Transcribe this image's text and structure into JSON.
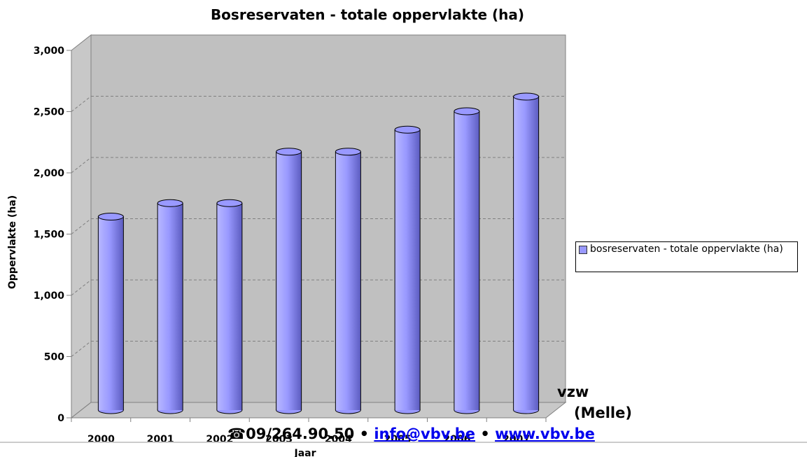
{
  "chart_data": {
    "type": "bar",
    "title": "Bosreservaten - totale oppervlakte (ha)",
    "xlabel": "Jaar",
    "ylabel": "Oppervlakte (ha)",
    "categories": [
      "2000",
      "2001",
      "2002",
      "2003",
      "2004",
      "2005",
      "2006",
      "2007"
    ],
    "series": [
      {
        "name": "bosreservaten - totale oppervlakte (ha)",
        "color": "#9999ff",
        "values": [
          1580,
          1690,
          1690,
          2110,
          2110,
          2290,
          2440,
          2560
        ]
      }
    ],
    "ylim": [
      0,
      3000
    ],
    "yticks": [
      0,
      500,
      {
        "value": 1000,
        "label": "1,000"
      },
      {
        "value": 1500,
        "label": "1,500"
      },
      {
        "value": 2000,
        "label": "2,000"
      },
      {
        "value": 2500,
        "label": "2,500"
      },
      {
        "value": 3000,
        "label": "3,000"
      }
    ],
    "grid": true,
    "legend": "right"
  },
  "footer": {
    "line1": "vzw",
    "line2": "(Melle)",
    "phone": "☎09/264.90.50 •",
    "email": "info@vbv.be",
    "sep": "•",
    "web": "www.vbv.be"
  }
}
